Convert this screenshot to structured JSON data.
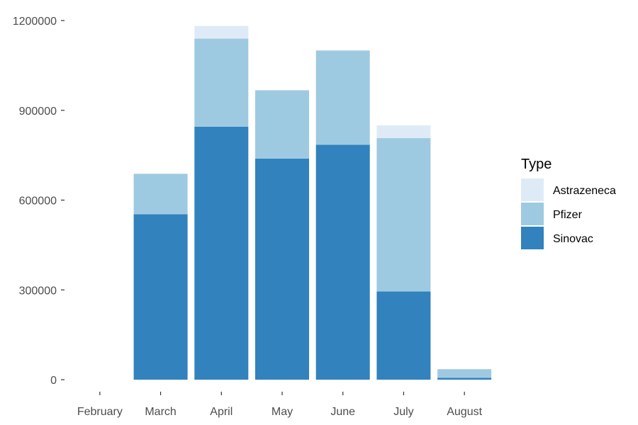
{
  "chart_data": {
    "type": "bar",
    "stacked": true,
    "categories": [
      "February",
      "March",
      "April",
      "May",
      "June",
      "July",
      "August"
    ],
    "series": [
      {
        "name": "Sinovac",
        "color": "#3182BD",
        "values": [
          0,
          553000,
          845000,
          739000,
          785000,
          295000,
          6000
        ]
      },
      {
        "name": "Pfizer",
        "color": "#9ECAE1",
        "values": [
          0,
          135000,
          295000,
          228000,
          315000,
          512000,
          29000
        ]
      },
      {
        "name": "Astrazeneca",
        "color": "#DEEBF7",
        "values": [
          0,
          0,
          42000,
          0,
          0,
          43000,
          0
        ]
      }
    ],
    "yticks": [
      0,
      300000,
      600000,
      900000,
      1200000
    ],
    "ytick_labels": [
      "0",
      "300000",
      "600000",
      "900000",
      "1200000"
    ],
    "ylim": [
      0,
      1200000
    ],
    "title": "",
    "xlabel": "",
    "ylabel": "",
    "grid": false,
    "legend": {
      "title": "Type",
      "position": "right",
      "items": [
        "Astrazeneca",
        "Pfizer",
        "Sinovac"
      ]
    }
  }
}
